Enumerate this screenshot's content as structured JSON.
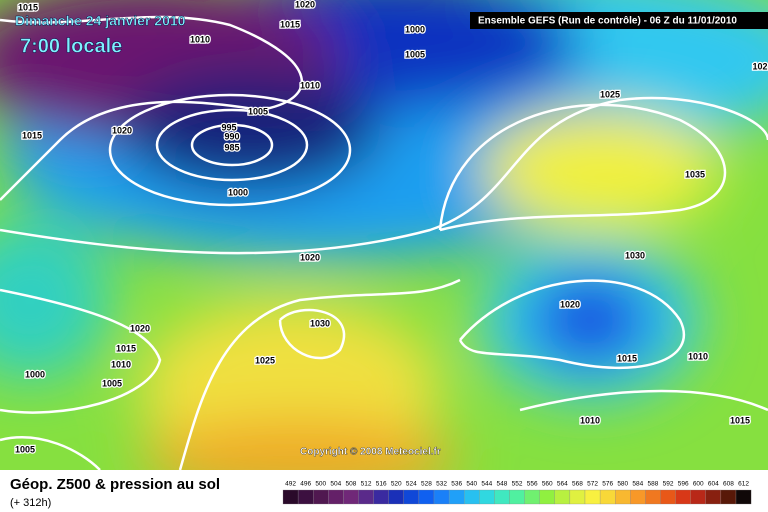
{
  "header": {
    "date": "Dimanche 24 janvier 2010",
    "time": "7:00 locale",
    "model": "Ensemble GEFS (Run de contrôle)  -  06 Z du 11/01/2010"
  },
  "isobar_labels": [
    "1015",
    "1020",
    "1015",
    "1010",
    "1000",
    "1005",
    "1010",
    "1005",
    "1020",
    "1015",
    "995",
    "990",
    "985",
    "1000",
    "1025",
    "1035",
    "1030",
    "1020",
    "1020",
    "1030",
    "1020",
    "1015",
    "1010",
    "1000",
    "1005",
    "1025",
    "1015",
    "1010",
    "1010",
    "1015",
    "1005",
    "102"
  ],
  "copyright": "Copyright © 2008 Meteociel.fr",
  "footer": {
    "title": "Géop. Z500 & pression au sol",
    "lead": "(+ 312h)"
  },
  "scale": {
    "values": [
      492,
      496,
      500,
      504,
      508,
      512,
      516,
      520,
      524,
      528,
      532,
      536,
      540,
      544,
      548,
      552,
      556,
      560,
      564,
      568,
      572,
      576,
      580,
      584,
      588,
      592,
      596,
      600,
      604,
      608,
      612
    ]
  }
}
